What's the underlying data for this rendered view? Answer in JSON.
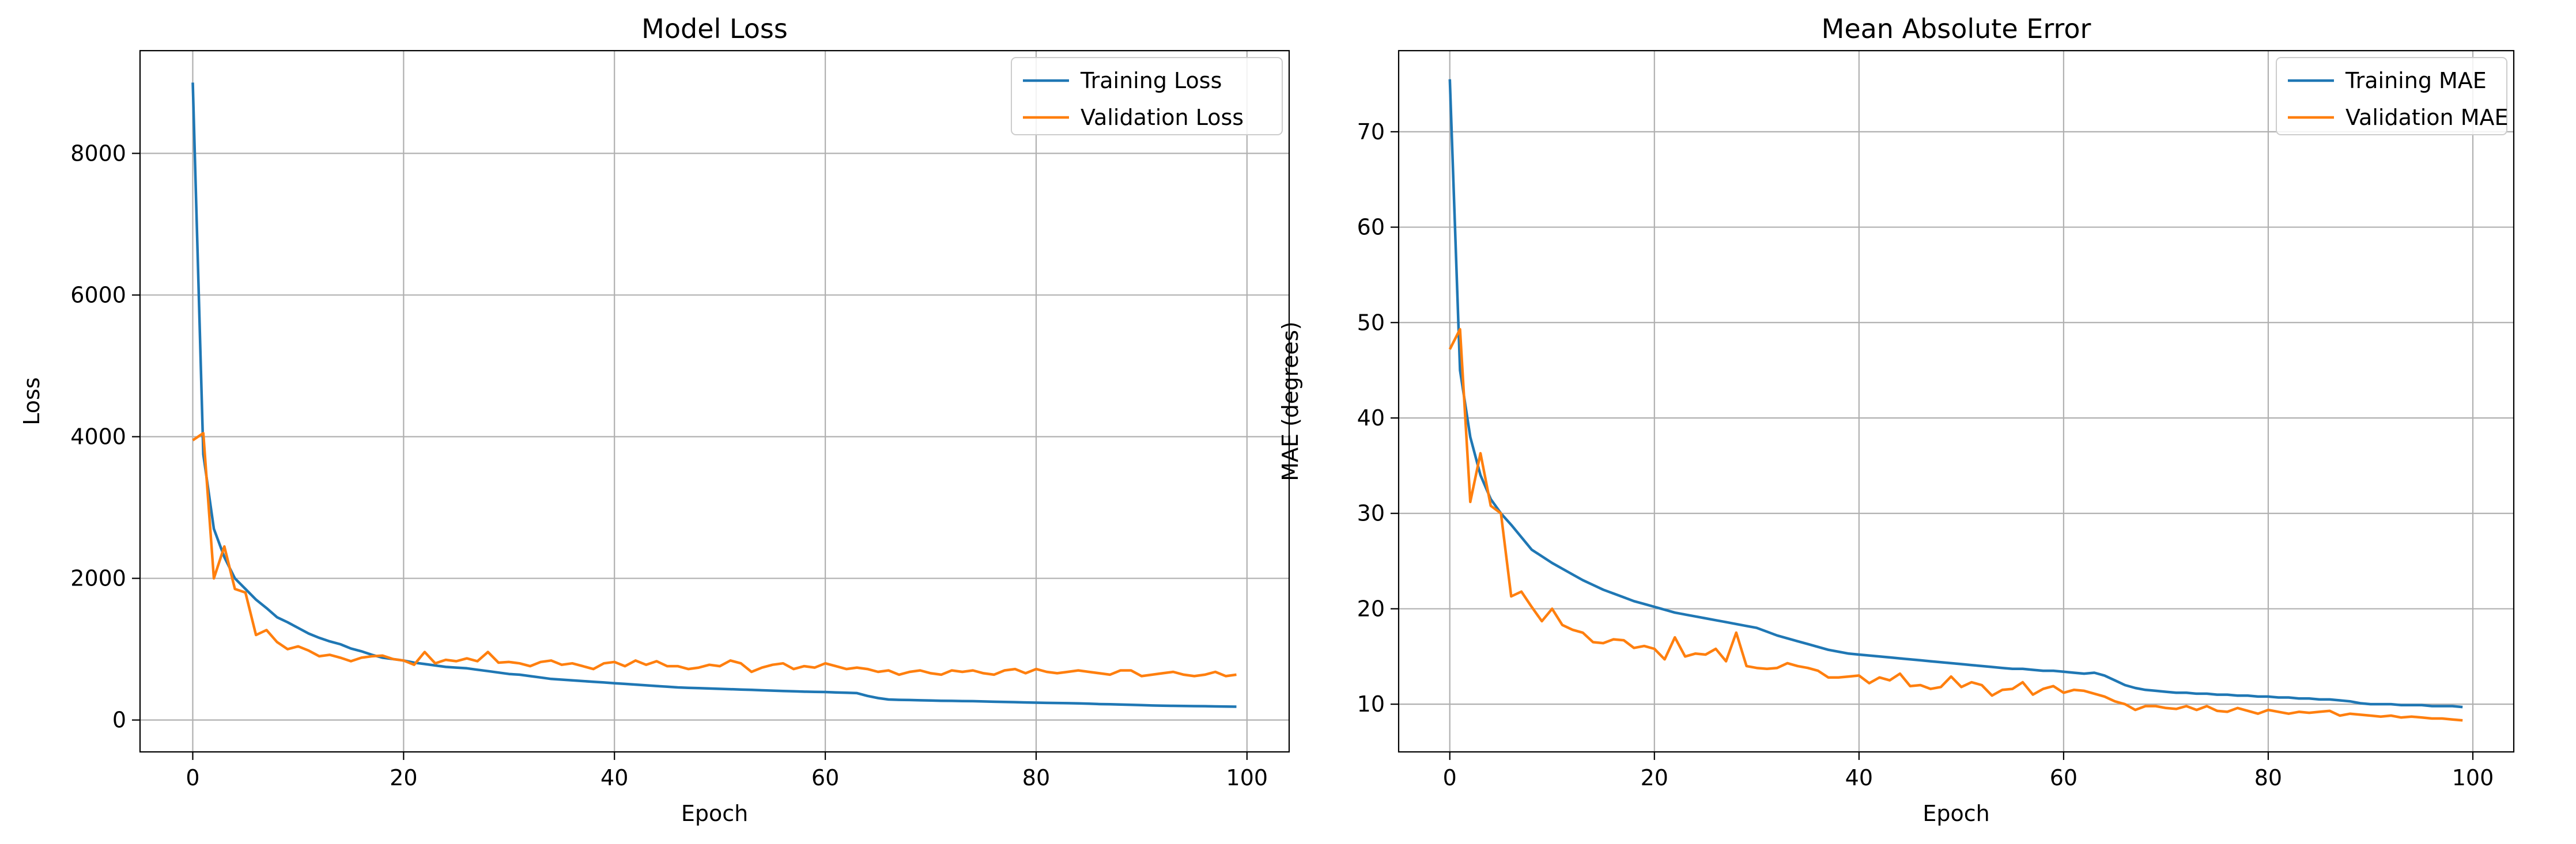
{
  "chart_data": [
    {
      "type": "line",
      "title": "Model Loss",
      "xlabel": "Epoch",
      "ylabel": "Loss",
      "xlim": [
        -5,
        104
      ],
      "ylim": [
        -450,
        9450
      ],
      "xticks": [
        0,
        20,
        40,
        60,
        80,
        100
      ],
      "yticks": [
        0,
        2000,
        4000,
        6000,
        8000
      ],
      "grid": true,
      "legend_position": "top-right",
      "series": [
        {
          "name": "Training Loss",
          "color": "#1f77b4",
          "values": [
            9000,
            3750,
            2700,
            2300,
            2000,
            1850,
            1700,
            1580,
            1450,
            1380,
            1300,
            1220,
            1160,
            1110,
            1070,
            1010,
            970,
            920,
            880,
            860,
            840,
            810,
            790,
            770,
            750,
            740,
            730,
            710,
            690,
            670,
            650,
            640,
            620,
            600,
            580,
            570,
            560,
            550,
            540,
            530,
            520,
            510,
            500,
            490,
            480,
            470,
            460,
            455,
            450,
            445,
            440,
            435,
            430,
            425,
            420,
            415,
            410,
            405,
            400,
            398,
            395,
            390,
            385,
            380,
            340,
            310,
            290,
            285,
            282,
            278,
            275,
            272,
            270,
            268,
            266,
            262,
            258,
            255,
            252,
            248,
            245,
            242,
            240,
            238,
            235,
            230,
            225,
            222,
            218,
            215,
            210,
            205,
            202,
            200,
            198,
            196,
            195,
            192,
            190,
            188
          ]
        },
        {
          "name": "Validation Loss",
          "color": "#ff7f0e",
          "values": [
            3950,
            4050,
            2000,
            2450,
            1850,
            1800,
            1200,
            1270,
            1100,
            1000,
            1040,
            980,
            900,
            920,
            880,
            830,
            880,
            900,
            910,
            860,
            840,
            780,
            960,
            800,
            850,
            830,
            870,
            830,
            960,
            810,
            820,
            800,
            760,
            820,
            840,
            780,
            800,
            760,
            720,
            800,
            820,
            760,
            840,
            780,
            830,
            760,
            760,
            720,
            740,
            780,
            760,
            840,
            800,
            680,
            740,
            780,
            800,
            720,
            760,
            740,
            800,
            760,
            720,
            740,
            720,
            680,
            700,
            640,
            680,
            700,
            660,
            640,
            700,
            680,
            700,
            660,
            640,
            700,
            720,
            660,
            720,
            680,
            660,
            680,
            700,
            680,
            660,
            640,
            700,
            700,
            620,
            640,
            660,
            680,
            640,
            620,
            640,
            680,
            620,
            640
          ]
        }
      ]
    },
    {
      "type": "line",
      "title": "Mean Absolute Error",
      "xlabel": "Epoch",
      "ylabel": "MAE (degrees)",
      "xlim": [
        -5,
        104
      ],
      "ylim": [
        5,
        78.5
      ],
      "xticks": [
        0,
        20,
        40,
        60,
        80,
        100
      ],
      "yticks": [
        10,
        20,
        30,
        40,
        50,
        60,
        70
      ],
      "grid": true,
      "legend_position": "top-right",
      "series": [
        {
          "name": "Training MAE",
          "color": "#1f77b4",
          "values": [
            75.5,
            45,
            38,
            34,
            31.5,
            30,
            28.8,
            27.5,
            26.2,
            25.5,
            24.8,
            24.2,
            23.6,
            23.0,
            22.5,
            22.0,
            21.6,
            21.2,
            20.8,
            20.5,
            20.2,
            19.9,
            19.6,
            19.4,
            19.2,
            19.0,
            18.8,
            18.6,
            18.4,
            18.2,
            18.0,
            17.6,
            17.2,
            16.9,
            16.6,
            16.3,
            16.0,
            15.7,
            15.5,
            15.3,
            15.2,
            15.1,
            15.0,
            14.9,
            14.8,
            14.7,
            14.6,
            14.5,
            14.4,
            14.3,
            14.2,
            14.1,
            14.0,
            13.9,
            13.8,
            13.7,
            13.7,
            13.6,
            13.5,
            13.5,
            13.4,
            13.3,
            13.2,
            13.3,
            13.0,
            12.5,
            12.0,
            11.7,
            11.5,
            11.4,
            11.3,
            11.2,
            11.2,
            11.1,
            11.1,
            11.0,
            11.0,
            10.9,
            10.9,
            10.8,
            10.8,
            10.7,
            10.7,
            10.6,
            10.6,
            10.5,
            10.5,
            10.4,
            10.3,
            10.1,
            10.0,
            10.0,
            10.0,
            9.9,
            9.9,
            9.9,
            9.8,
            9.8,
            9.8,
            9.7
          ]
        },
        {
          "name": "Validation MAE",
          "color": "#ff7f0e",
          "values": [
            47.2,
            49.3,
            31.2,
            36.3,
            30.8,
            30.0,
            21.3,
            21.8,
            20.2,
            18.7,
            20.0,
            18.3,
            17.8,
            17.5,
            16.5,
            16.4,
            16.8,
            16.7,
            15.9,
            16.1,
            15.8,
            14.7,
            17.0,
            15.0,
            15.3,
            15.2,
            15.8,
            14.5,
            17.5,
            14.0,
            13.8,
            13.7,
            13.8,
            14.3,
            14.0,
            13.8,
            13.5,
            12.8,
            12.8,
            12.9,
            13.0,
            12.2,
            12.8,
            12.5,
            13.2,
            11.9,
            12.0,
            11.6,
            11.8,
            12.9,
            11.8,
            12.3,
            12.0,
            10.9,
            11.5,
            11.6,
            12.3,
            11.0,
            11.6,
            11.9,
            11.2,
            11.5,
            11.4,
            11.1,
            10.8,
            10.3,
            10.0,
            9.4,
            9.8,
            9.8,
            9.6,
            9.5,
            9.8,
            9.4,
            9.8,
            9.3,
            9.2,
            9.6,
            9.3,
            9.0,
            9.4,
            9.2,
            9.0,
            9.2,
            9.1,
            9.2,
            9.3,
            8.8,
            9.0,
            8.9,
            8.8,
            8.7,
            8.8,
            8.6,
            8.7,
            8.6,
            8.5,
            8.5,
            8.4,
            8.3
          ]
        }
      ]
    }
  ]
}
